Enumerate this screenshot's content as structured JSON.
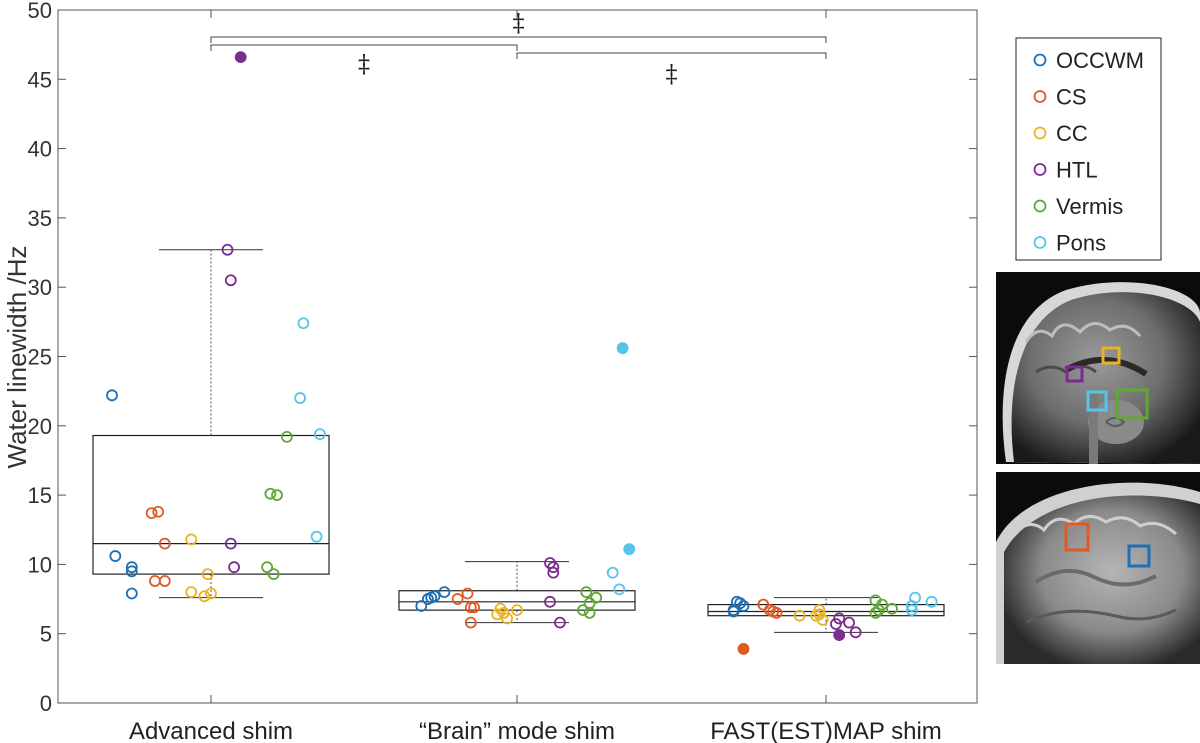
{
  "chart_data": {
    "type": "box-scatter",
    "ylabel": "Water linewidth /Hz",
    "ylim": [
      0,
      50
    ],
    "yticks": [
      0,
      5,
      10,
      15,
      20,
      25,
      30,
      35,
      40,
      45,
      50
    ],
    "categories": [
      "Advanced shim",
      "“Brain” mode shim",
      "FAST(EST)MAP shim"
    ],
    "legend": {
      "placement": "right-outside"
    },
    "grid": false,
    "significance": [
      {
        "from": 0,
        "to": 2,
        "label": "‡"
      },
      {
        "from": 0,
        "to": 1,
        "label": "‡"
      },
      {
        "from": 1,
        "to": 2,
        "label": "‡"
      }
    ],
    "boxes": [
      {
        "category": "Advanced shim",
        "whisker_low": 7.6,
        "q1": 9.3,
        "median": 11.5,
        "q3": 19.3,
        "whisker_high": 32.7
      },
      {
        "category": "“Brain” mode shim",
        "whisker_low": 5.8,
        "q1": 6.7,
        "median": 7.3,
        "q3": 8.1,
        "whisker_high": 10.2
      },
      {
        "category": "FAST(EST)MAP shim",
        "whisker_low": 5.1,
        "q1": 6.3,
        "median": 6.6,
        "q3": 7.1,
        "whisker_high": 7.6
      }
    ],
    "series": [
      {
        "name": "OCCWM",
        "color": "#1f6fb5",
        "points": [
          {
            "cat": 0,
            "x": -0.29,
            "y": 10.6
          },
          {
            "cat": 0,
            "x": -0.24,
            "y": 9.8
          },
          {
            "cat": 0,
            "x": -0.24,
            "y": 9.5
          },
          {
            "cat": 0,
            "x": -0.24,
            "y": 7.9
          },
          {
            "cat": 0,
            "x": -0.3,
            "y": 22.2
          },
          {
            "cat": 1,
            "x": -0.29,
            "y": 7.0
          },
          {
            "cat": 1,
            "x": -0.27,
            "y": 7.5
          },
          {
            "cat": 1,
            "x": -0.25,
            "y": 7.7
          },
          {
            "cat": 1,
            "x": -0.22,
            "y": 8.0
          },
          {
            "cat": 1,
            "x": -0.26,
            "y": 7.6
          },
          {
            "cat": 2,
            "x": -0.28,
            "y": 6.7
          },
          {
            "cat": 2,
            "x": -0.27,
            "y": 7.3
          },
          {
            "cat": 2,
            "x": -0.26,
            "y": 7.2
          },
          {
            "cat": 2,
            "x": -0.25,
            "y": 7.0
          },
          {
            "cat": 2,
            "x": -0.28,
            "y": 6.6
          }
        ]
      },
      {
        "name": "CS",
        "color": "#e05a24",
        "points": [
          {
            "cat": 0,
            "x": -0.18,
            "y": 13.7
          },
          {
            "cat": 0,
            "x": -0.16,
            "y": 13.8
          },
          {
            "cat": 0,
            "x": -0.14,
            "y": 11.5
          },
          {
            "cat": 0,
            "x": -0.17,
            "y": 8.8
          },
          {
            "cat": 0,
            "x": -0.14,
            "y": 8.8
          },
          {
            "cat": 1,
            "x": -0.18,
            "y": 7.5
          },
          {
            "cat": 1,
            "x": -0.15,
            "y": 7.9
          },
          {
            "cat": 1,
            "x": -0.13,
            "y": 6.9
          },
          {
            "cat": 1,
            "x": -0.14,
            "y": 6.9
          },
          {
            "cat": 1,
            "x": -0.14,
            "y": 5.8
          },
          {
            "cat": 2,
            "x": -0.19,
            "y": 7.1
          },
          {
            "cat": 2,
            "x": -0.17,
            "y": 6.7
          },
          {
            "cat": 2,
            "x": -0.16,
            "y": 6.6
          },
          {
            "cat": 2,
            "x": -0.15,
            "y": 6.5
          },
          {
            "cat": 2,
            "x": -0.25,
            "y": 3.9,
            "filled": true
          }
        ]
      },
      {
        "name": "CC",
        "color": "#eab321",
        "points": [
          {
            "cat": 0,
            "x": -0.06,
            "y": 11.8
          },
          {
            "cat": 0,
            "x": -0.06,
            "y": 8.0
          },
          {
            "cat": 0,
            "x": -0.02,
            "y": 7.7
          },
          {
            "cat": 0,
            "x": 0.0,
            "y": 7.9
          },
          {
            "cat": 0,
            "x": -0.01,
            "y": 9.3
          },
          {
            "cat": 1,
            "x": -0.05,
            "y": 6.8
          },
          {
            "cat": 1,
            "x": -0.06,
            "y": 6.4
          },
          {
            "cat": 1,
            "x": -0.03,
            "y": 6.1
          },
          {
            "cat": 1,
            "x": 0.0,
            "y": 6.7
          },
          {
            "cat": 1,
            "x": -0.04,
            "y": 6.5
          },
          {
            "cat": 2,
            "x": -0.08,
            "y": 6.3
          },
          {
            "cat": 2,
            "x": -0.03,
            "y": 6.3
          },
          {
            "cat": 2,
            "x": -0.02,
            "y": 6.4
          },
          {
            "cat": 2,
            "x": -0.02,
            "y": 6.7
          },
          {
            "cat": 2,
            "x": -0.01,
            "y": 6.0
          }
        ]
      },
      {
        "name": "HTL",
        "color": "#7b2c8f",
        "points": [
          {
            "cat": 0,
            "x": 0.05,
            "y": 32.7
          },
          {
            "cat": 0,
            "x": 0.06,
            "y": 30.5
          },
          {
            "cat": 0,
            "x": 0.06,
            "y": 11.5
          },
          {
            "cat": 0,
            "x": 0.07,
            "y": 9.8
          },
          {
            "cat": 0,
            "x": 0.09,
            "y": 46.6,
            "filled": true
          },
          {
            "cat": 1,
            "x": 0.1,
            "y": 10.1
          },
          {
            "cat": 1,
            "x": 0.11,
            "y": 9.8
          },
          {
            "cat": 1,
            "x": 0.11,
            "y": 9.4
          },
          {
            "cat": 1,
            "x": 0.1,
            "y": 7.3
          },
          {
            "cat": 1,
            "x": 0.13,
            "y": 5.8
          },
          {
            "cat": 2,
            "x": 0.03,
            "y": 5.7
          },
          {
            "cat": 2,
            "x": 0.04,
            "y": 6.1
          },
          {
            "cat": 2,
            "x": 0.07,
            "y": 5.8
          },
          {
            "cat": 2,
            "x": 0.09,
            "y": 5.1
          },
          {
            "cat": 2,
            "x": 0.04,
            "y": 4.9,
            "filled": true
          }
        ]
      },
      {
        "name": "Vermis",
        "color": "#5fa832",
        "points": [
          {
            "cat": 0,
            "x": 0.18,
            "y": 15.1
          },
          {
            "cat": 0,
            "x": 0.2,
            "y": 15.0
          },
          {
            "cat": 0,
            "x": 0.23,
            "y": 19.2
          },
          {
            "cat": 0,
            "x": 0.17,
            "y": 9.8
          },
          {
            "cat": 0,
            "x": 0.19,
            "y": 9.3
          },
          {
            "cat": 1,
            "x": 0.21,
            "y": 8.0
          },
          {
            "cat": 1,
            "x": 0.24,
            "y": 7.6
          },
          {
            "cat": 1,
            "x": 0.22,
            "y": 7.2
          },
          {
            "cat": 1,
            "x": 0.2,
            "y": 6.7
          },
          {
            "cat": 1,
            "x": 0.22,
            "y": 6.5
          },
          {
            "cat": 2,
            "x": 0.15,
            "y": 7.4
          },
          {
            "cat": 2,
            "x": 0.17,
            "y": 7.1
          },
          {
            "cat": 2,
            "x": 0.2,
            "y": 6.8
          },
          {
            "cat": 2,
            "x": 0.16,
            "y": 6.7
          },
          {
            "cat": 2,
            "x": 0.15,
            "y": 6.5
          }
        ]
      },
      {
        "name": "Pons",
        "color": "#55c5ea",
        "points": [
          {
            "cat": 0,
            "x": 0.28,
            "y": 27.4
          },
          {
            "cat": 0,
            "x": 0.27,
            "y": 22.0
          },
          {
            "cat": 0,
            "x": 0.33,
            "y": 19.4
          },
          {
            "cat": 0,
            "x": 0.32,
            "y": 12.0
          },
          {
            "cat": 1,
            "x": 0.29,
            "y": 9.4
          },
          {
            "cat": 1,
            "x": 0.31,
            "y": 8.2
          },
          {
            "cat": 1,
            "x": 0.32,
            "y": 25.6,
            "filled": true
          },
          {
            "cat": 1,
            "x": 0.34,
            "y": 11.1,
            "filled": true
          },
          {
            "cat": 2,
            "x": 0.27,
            "y": 7.6
          },
          {
            "cat": 2,
            "x": 0.26,
            "y": 7.0
          },
          {
            "cat": 2,
            "x": 0.32,
            "y": 7.3
          },
          {
            "cat": 2,
            "x": 0.26,
            "y": 6.7
          }
        ]
      }
    ]
  },
  "insets": {
    "top_panel_roi_colors": [
      "#7b2c8f",
      "#eab321",
      "#55c5ea",
      "#5fa832"
    ],
    "bottom_panel_roi_colors": [
      "#e05a24",
      "#1f6fb5"
    ]
  }
}
